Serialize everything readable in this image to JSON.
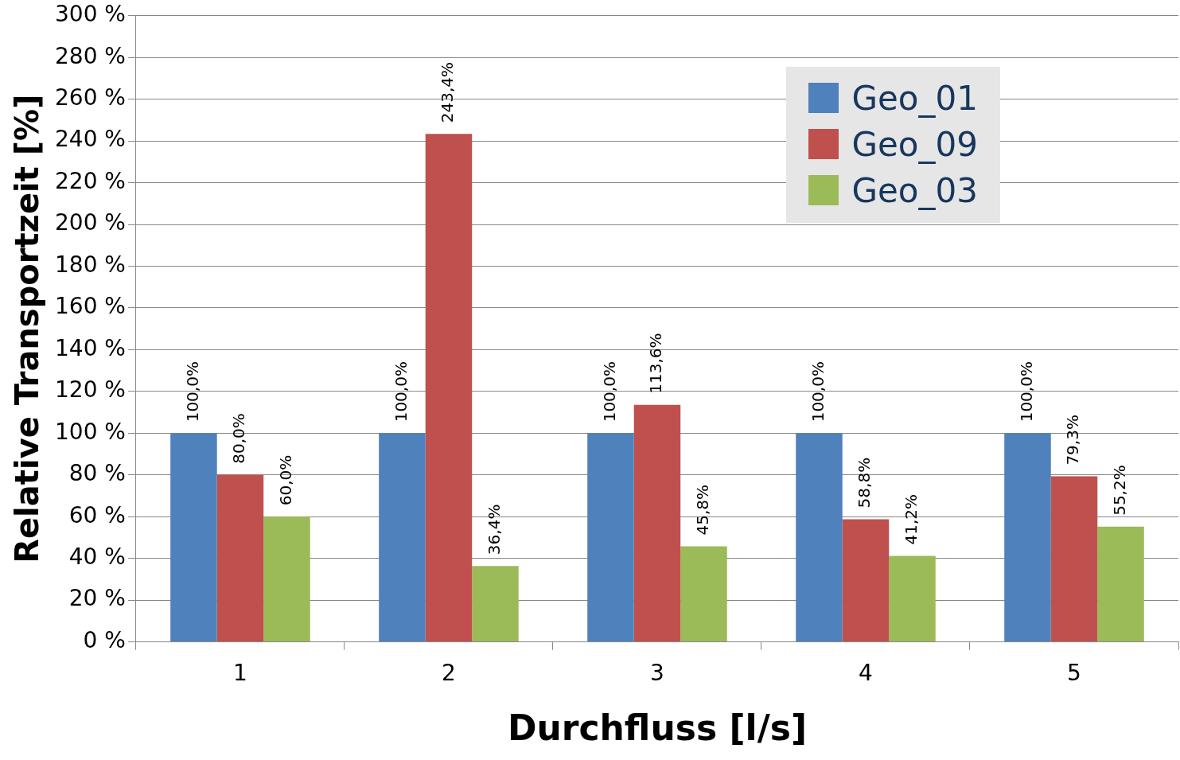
{
  "chart_data": {
    "type": "bar",
    "xlabel": "Durchfluss [l/s]",
    "ylabel": "Relative Transportzeit [%]",
    "categories": [
      "1",
      "2",
      "3",
      "4",
      "5"
    ],
    "series": [
      {
        "name": "Geo_01",
        "color": "#4f81bd",
        "values": [
          100,
          100,
          100,
          100,
          100
        ],
        "value_labels": [
          "100,0%",
          "100,0%",
          "100,0%",
          "100,0%",
          "100,0%"
        ]
      },
      {
        "name": "Geo_09",
        "color": "#c0504d",
        "values": [
          80,
          243.4,
          113.6,
          58.8,
          79.3
        ],
        "value_labels": [
          "80,0%",
          "243,4%",
          "113,6%",
          "58,8%",
          "79,3%"
        ]
      },
      {
        "name": "Geo_03",
        "color": "#9bbb59",
        "values": [
          60,
          36.4,
          45.8,
          41.2,
          55.2
        ],
        "value_labels": [
          "60,0%",
          "36,4%",
          "45,8%",
          "41,2%",
          "55,2%"
        ]
      }
    ],
    "ylim": [
      0,
      300
    ],
    "yticks": [
      {
        "value": 0,
        "label": "0 %"
      },
      {
        "value": 20,
        "label": "20 %"
      },
      {
        "value": 40,
        "label": "40 %"
      },
      {
        "value": 60,
        "label": "60 %"
      },
      {
        "value": 80,
        "label": "80 %"
      },
      {
        "value": 100,
        "label": "100 %"
      },
      {
        "value": 120,
        "label": "120 %"
      },
      {
        "value": 140,
        "label": "140 %"
      },
      {
        "value": 160,
        "label": "160 %"
      },
      {
        "value": 180,
        "label": "180 %"
      },
      {
        "value": 200,
        "label": "200 %"
      },
      {
        "value": 220,
        "label": "220 %"
      },
      {
        "value": 240,
        "label": "240 %"
      },
      {
        "value": 260,
        "label": "260 %"
      },
      {
        "value": 280,
        "label": "280 %"
      },
      {
        "value": 300,
        "label": "300 %"
      }
    ],
    "grid": "y",
    "legend": "top right"
  }
}
